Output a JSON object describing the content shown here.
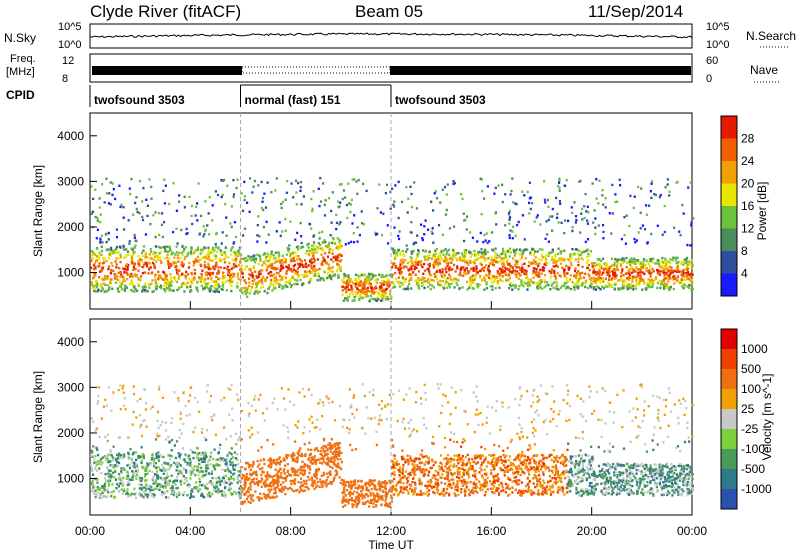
{
  "header": {
    "station": "Clyde River (fitACF)",
    "beam": "Beam 05",
    "date": "11/Sep/2014"
  },
  "strip_labels": {
    "nsky": "N.Sky",
    "nsky_top": "10^5",
    "nsky_bot": "10^0",
    "nsearch": "N.Search",
    "nsearch_top": "10^5",
    "nsearch_bot": "10^0",
    "freq_top": "Freq.",
    "freq_unit": "[MHz]",
    "freq_hi": "12",
    "freq_lo": "8",
    "nave": "Nave",
    "nave_hi": "60",
    "nave_lo": "0",
    "cpid": "CPID"
  },
  "cpid_segments": [
    {
      "label": "twofsound 3503",
      "start": 0,
      "end": 6
    },
    {
      "label": "normal (fast) 151",
      "start": 6,
      "end": 12
    },
    {
      "label": "twofsound 3503",
      "start": 12,
      "end": 24
    }
  ],
  "colors": {
    "power": [
      "#1a1aff",
      "#2e4f9e",
      "#4c8c5a",
      "#6cc23a",
      "#e6e600",
      "#f0a000",
      "#f06000",
      "#e61a00"
    ],
    "velocity": [
      "#2a50b0",
      "#2e7a8a",
      "#4a9a5a",
      "#7cd03a",
      "#c8c8c8",
      "#f0a000",
      "#f07010",
      "#f04000",
      "#e00000"
    ]
  },
  "chart_data": [
    {
      "type": "heatmap",
      "title": "",
      "xlabel": "Time UT",
      "ylabel": "Slant Range [km]",
      "x_ticks": [
        "00:00",
        "04:00",
        "08:00",
        "12:00",
        "16:00",
        "20:00",
        "00:00"
      ],
      "y_ticks": [
        "1000",
        "2000",
        "3000",
        "4000"
      ],
      "xlim": [
        0,
        24
      ],
      "ylim": [
        200,
        4500
      ],
      "colorbar": {
        "label": "Power [dB]",
        "ticks": [
          "4",
          "8",
          "12",
          "16",
          "20",
          "24",
          "28"
        ]
      }
    },
    {
      "type": "heatmap",
      "title": "",
      "xlabel": "Time UT",
      "ylabel": "Slant Range [km]",
      "x_ticks": [
        "00:00",
        "04:00",
        "08:00",
        "12:00",
        "16:00",
        "20:00",
        "00:00"
      ],
      "y_ticks": [
        "1000",
        "2000",
        "3000",
        "4000"
      ],
      "xlim": [
        0,
        24
      ],
      "ylim": [
        200,
        4500
      ],
      "colorbar": {
        "label": "Velocity [m s^-1]",
        "ticks": [
          "1000",
          "500",
          "100",
          "25",
          "-25",
          "-100",
          "-500",
          "-1000"
        ]
      }
    }
  ]
}
